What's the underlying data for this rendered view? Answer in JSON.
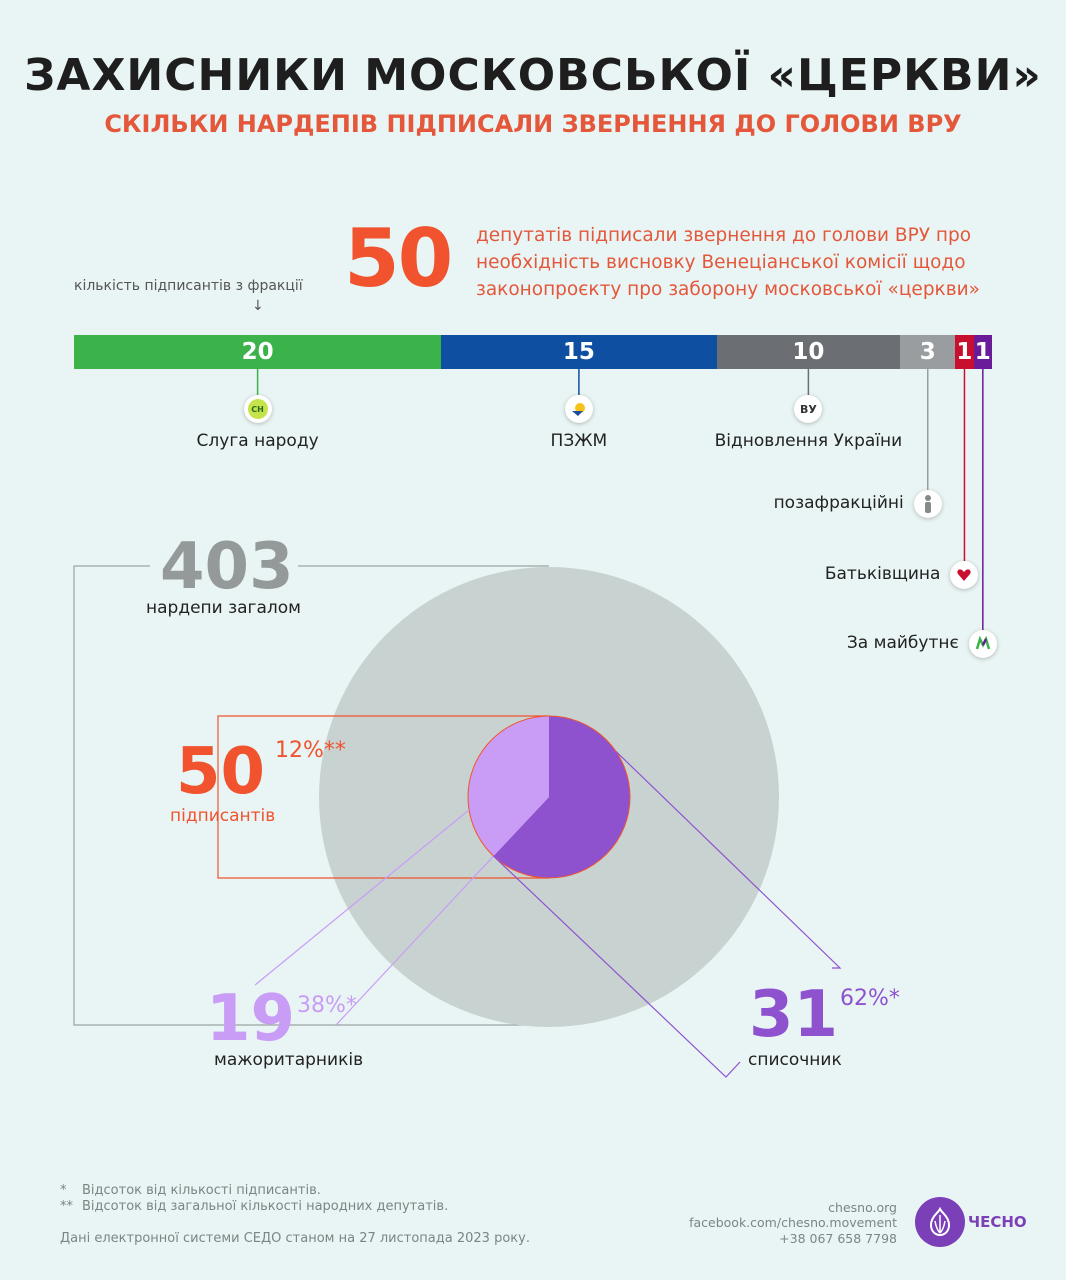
{
  "header": {
    "title": "ЗАХИСНИКИ МОСКОВСЬКОЇ «ЦЕРКВИ»",
    "subtitle": "СКІЛЬКИ НАРДЕПІВ ПІДПИСАЛИ ЗВЕРНЕННЯ ДО ГОЛОВИ ВРУ"
  },
  "intro": {
    "big_number": "50",
    "description": "депутатів підписали звернення до голови ВРУ про необхідність висновку Венеціанської комісії щодо законопроєкту про заборону московської «церкви»"
  },
  "fraction_note": "кількість підписантів з фракції",
  "fraction_arrow": "↓",
  "colors": {
    "servant": "#3bb34a",
    "platform": "#0f4fa1",
    "restoration": "#6b6e72",
    "nonfaction": "#9a9d9f",
    "batkivshchyna": "#c8102e",
    "future": "#6a1b9a",
    "majoritarian": "#c99cf5",
    "list": "#8f52cf",
    "total": "#c8d3d1",
    "accent": "#f0532e"
  },
  "chart_data": [
    {
      "type": "bar",
      "orientation": "stacked-horizontal",
      "categories": [
        "Слуга народу",
        "ПЗЖМ",
        "Відновлення України",
        "позафракційні",
        "Батьківщина",
        "За майбутнє"
      ],
      "values": [
        20,
        15,
        10,
        3,
        1,
        1
      ],
      "labels": [
        "20",
        "15",
        "10",
        "3",
        "1",
        "1"
      ],
      "icons": [
        "servant-of-people-logo-icon",
        "platform-logo-icon",
        "restoration-logo-icon",
        "person-icon",
        "heart-icon",
        "future-logo-icon"
      ],
      "badge_texts": [
        "СН",
        "",
        "ВУ",
        "",
        "",
        ""
      ]
    },
    {
      "type": "pie",
      "total": {
        "value": 403,
        "label": "нардепи загалом"
      },
      "signatories": {
        "value": 50,
        "percent": "12%**",
        "label": "підписантів"
      },
      "slices": [
        {
          "name": "мажоритарників",
          "value": 19,
          "percent": "38%*"
        },
        {
          "name": "списочник",
          "value": 31,
          "percent": "62%*"
        }
      ]
    }
  ],
  "footnotes": {
    "star1_mark": "*",
    "star1": "Відсоток від кількості підписантів.",
    "star2_mark": "**",
    "star2": "Відсоток від загальної кількості народних депутатів.",
    "source": "Дані електронної системи СЕДО станом на 27 листопада 2023 року."
  },
  "contacts": {
    "site": "chesno.org",
    "facebook": "facebook.com/chesno.movement",
    "phone": "+38 067 658 7798",
    "logo_text": "ЧЕСНО"
  }
}
